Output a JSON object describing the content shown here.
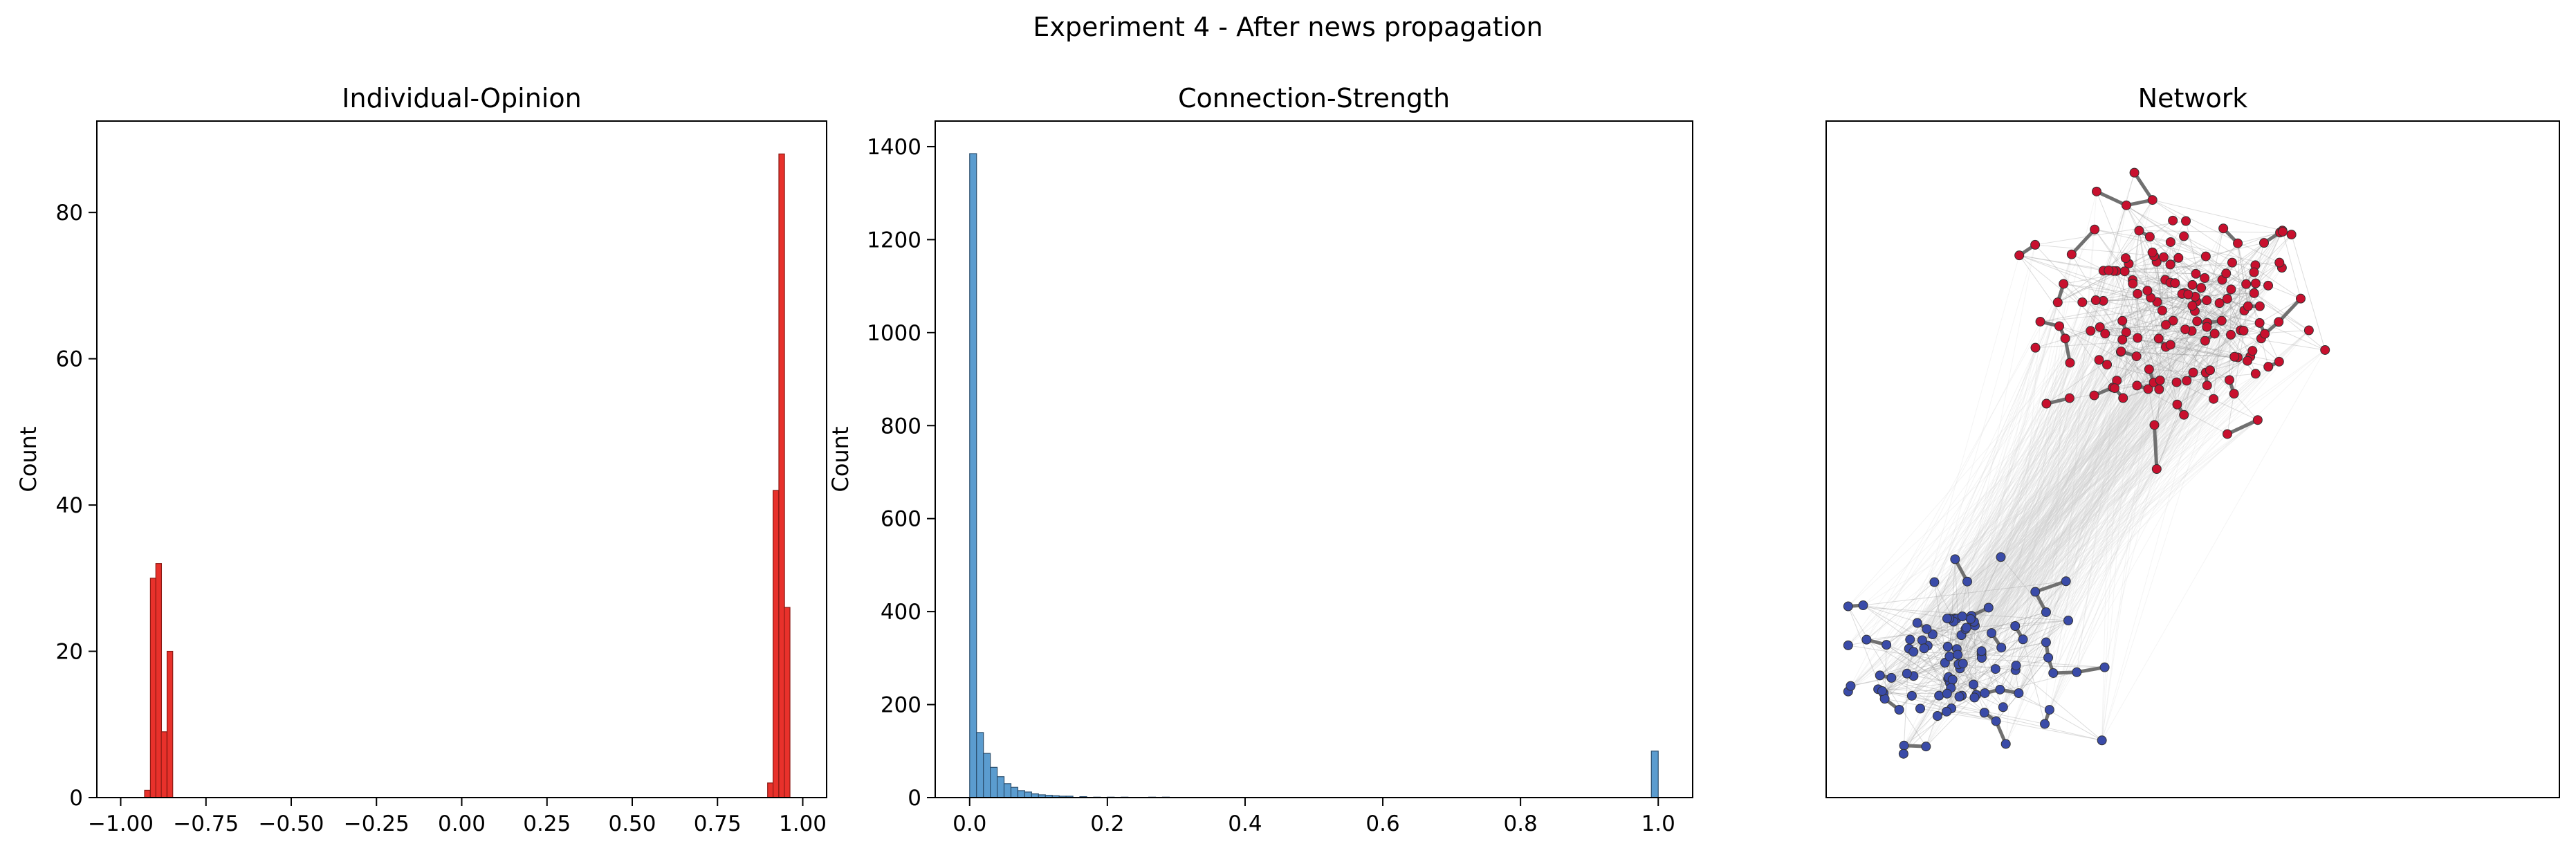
{
  "figure": {
    "suptitle": "Experiment 4 - After news propagation"
  },
  "chart_data": [
    {
      "type": "bar",
      "title": "Individual-Opinion",
      "xlabel": "",
      "ylabel": "Count",
      "xlim": [
        -1.07,
        1.07
      ],
      "ylim": [
        0,
        92.5
      ],
      "xticks": [
        -1.0,
        -0.75,
        -0.5,
        -0.25,
        0.0,
        0.25,
        0.5,
        0.75,
        1.0
      ],
      "xtick_labels": [
        "−1.00",
        "−0.75",
        "−0.50",
        "−0.25",
        "0.00",
        "0.25",
        "0.50",
        "0.75",
        "1.00"
      ],
      "yticks": [
        0,
        20,
        40,
        60,
        80
      ],
      "ytick_labels": [
        "0",
        "20",
        "40",
        "60",
        "80"
      ],
      "bin_width": 0.0165,
      "bins": [
        {
          "x": -0.93,
          "count": 1
        },
        {
          "x": -0.913,
          "count": 30
        },
        {
          "x": -0.897,
          "count": 32
        },
        {
          "x": -0.881,
          "count": 9
        },
        {
          "x": -0.864,
          "count": 20
        },
        {
          "x": 0.897,
          "count": 2
        },
        {
          "x": 0.913,
          "count": 42
        },
        {
          "x": 0.93,
          "count": 88
        },
        {
          "x": 0.946,
          "count": 26
        }
      ],
      "bar_color": "#e8312b",
      "edge_color": "#8b1a14",
      "grid": false
    },
    {
      "type": "bar",
      "title": "Connection-Strength",
      "xlabel": "",
      "ylabel": "Count",
      "xlim": [
        -0.05,
        1.05
      ],
      "ylim": [
        0,
        1455
      ],
      "xticks": [
        0.0,
        0.2,
        0.4,
        0.6,
        0.8,
        1.0
      ],
      "xtick_labels": [
        "0.0",
        "0.2",
        "0.4",
        "0.6",
        "0.8",
        "1.0"
      ],
      "yticks": [
        0,
        200,
        400,
        600,
        800,
        1000,
        1200,
        1400
      ],
      "ytick_labels": [
        "0",
        "200",
        "400",
        "600",
        "800",
        "1000",
        "1200",
        "1400"
      ],
      "bin_width": 0.01,
      "bins": [
        {
          "x": 0.0,
          "count": 1385
        },
        {
          "x": 0.01,
          "count": 140
        },
        {
          "x": 0.02,
          "count": 95
        },
        {
          "x": 0.03,
          "count": 65
        },
        {
          "x": 0.04,
          "count": 45
        },
        {
          "x": 0.05,
          "count": 30
        },
        {
          "x": 0.06,
          "count": 22
        },
        {
          "x": 0.07,
          "count": 15
        },
        {
          "x": 0.08,
          "count": 12
        },
        {
          "x": 0.09,
          "count": 8
        },
        {
          "x": 0.1,
          "count": 6
        },
        {
          "x": 0.11,
          "count": 5
        },
        {
          "x": 0.12,
          "count": 4
        },
        {
          "x": 0.13,
          "count": 3
        },
        {
          "x": 0.14,
          "count": 3
        },
        {
          "x": 0.16,
          "count": 2
        },
        {
          "x": 0.18,
          "count": 1
        },
        {
          "x": 0.2,
          "count": 1
        },
        {
          "x": 0.22,
          "count": 1
        },
        {
          "x": 0.26,
          "count": 1
        },
        {
          "x": 0.28,
          "count": 1
        },
        {
          "x": 0.99,
          "count": 100
        }
      ],
      "bar_color": "#5b9ccf",
      "edge_color": "#2c4f6e",
      "grid": false
    },
    {
      "type": "network",
      "title": "Network",
      "xlim": [
        0,
        1
      ],
      "ylim": [
        0,
        1
      ],
      "axes_visible": false,
      "groups": [
        {
          "color": "#c8102e",
          "edge_color": "#7a1a22",
          "count": 155,
          "center": [
            0.48,
            0.71
          ],
          "spread": [
            0.21,
            0.19
          ]
        },
        {
          "color": "#3a4ba8",
          "edge_color": "#3c8c8c",
          "count": 100,
          "center": [
            0.18,
            0.21
          ],
          "spread": [
            0.16,
            0.14
          ]
        }
      ],
      "node_color_red": "#c8102e",
      "node_color_blue": "#3a4ba8"
    }
  ]
}
